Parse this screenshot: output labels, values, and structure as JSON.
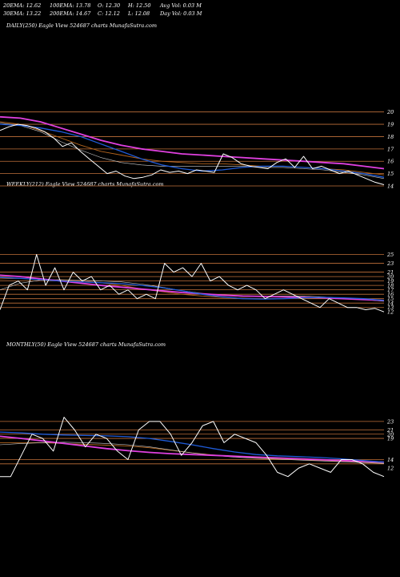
{
  "header": {
    "row1": [
      "20EMA: 12.62",
      "100EMA: 13.78",
      "O: 12.30",
      "H: 12.50",
      "Avg Vol: 0.03 M"
    ],
    "row2": [
      "30EMA: 13.22",
      "200EMA: 14.67",
      "C: 12.12",
      "L: 12.08",
      "Day Vol: 0.03 M"
    ]
  },
  "colors": {
    "background": "#000000",
    "price": "#ffffff",
    "ema_blue": "#1f5bd8",
    "ema_magenta": "#e040e0",
    "ema_brown": "#b5651d",
    "support_lines": "#c0703a"
  },
  "chart_data": [
    {
      "type": "line",
      "title": "DAILY(250) Eagle  View  524687 charts MunafaSutra.com",
      "ylim": [
        14,
        20.5
      ],
      "yticks": [
        20,
        19,
        18,
        17,
        16,
        15,
        14
      ],
      "hlines": [
        20,
        19,
        18,
        17,
        16,
        15,
        14
      ],
      "series": [
        {
          "role": "price",
          "values": [
            18.5,
            18.8,
            19.0,
            18.9,
            18.7,
            18.4,
            17.9,
            17.2,
            17.5,
            16.8,
            16.2,
            15.6,
            15.0,
            15.2,
            14.8,
            14.6,
            14.7,
            14.9,
            15.3,
            15.1,
            15.2,
            15.0,
            15.3,
            15.2,
            15.1,
            16.6,
            16.3,
            15.8,
            15.6,
            15.5,
            15.4,
            15.9,
            16.2,
            15.5,
            16.4,
            15.4,
            15.6,
            15.3,
            15.0,
            15.2,
            14.9,
            14.6,
            14.3,
            14.1
          ]
        },
        {
          "role": "ema-blue",
          "values": [
            19.0,
            18.9,
            18.7,
            18.4,
            18.0,
            17.4,
            16.8,
            16.2,
            15.7,
            15.4,
            15.2,
            15.3,
            15.5,
            15.6,
            15.6,
            15.5,
            15.4,
            15.2,
            15.0,
            14.7
          ]
        },
        {
          "role": "ema-magenta",
          "values": [
            19.6,
            19.5,
            19.2,
            18.7,
            18.2,
            17.7,
            17.3,
            17.0,
            16.8,
            16.6,
            16.5,
            16.4,
            16.3,
            16.2,
            16.1,
            16.0,
            15.9,
            15.8,
            15.6,
            15.4
          ]
        },
        {
          "role": "ema-brown",
          "values": [
            19.2,
            19.0,
            18.5,
            17.9,
            17.3,
            16.8,
            16.5,
            16.2,
            16.0,
            15.9,
            15.8,
            15.8,
            15.7,
            15.6,
            15.6,
            15.5,
            15.4,
            15.3,
            15.1,
            14.9
          ]
        },
        {
          "role": "ema-white",
          "values": [
            19.1,
            18.9,
            18.4,
            17.6,
            16.9,
            16.3,
            15.9,
            15.7,
            15.6,
            15.6,
            15.6,
            15.6,
            15.6,
            15.5,
            15.5,
            15.4,
            15.3,
            15.1,
            14.9,
            14.6
          ]
        }
      ]
    },
    {
      "type": "line",
      "title": "WEEKLY(212) Eagle  View  524687 charts MunafaSutra.com",
      "ylim": [
        11.5,
        26
      ],
      "yticks": [
        25,
        23,
        21,
        20,
        19,
        18,
        17,
        16,
        15,
        14,
        13,
        12
      ],
      "hlines": [
        25,
        23,
        21,
        20,
        19,
        18,
        17,
        16,
        15,
        14,
        13
      ],
      "series": [
        {
          "role": "price",
          "values": [
            12.5,
            18,
            19,
            17,
            25,
            18,
            22,
            17,
            21,
            19,
            20,
            17,
            18,
            16,
            17,
            15,
            16,
            15,
            23,
            21,
            22,
            20,
            23,
            19,
            20,
            18,
            17,
            18,
            17,
            15,
            16,
            17,
            16,
            15,
            14,
            13,
            15,
            14,
            13,
            13,
            12.5,
            12.8,
            12
          ]
        },
        {
          "role": "ema-blue",
          "values": [
            19.8,
            19.6,
            19.3,
            19.0,
            18.8,
            18.6,
            18.4,
            18.0,
            17.5,
            16.8,
            16.0,
            15.4,
            15.0,
            14.9,
            15.0,
            15.2,
            15.3,
            15.2,
            15.0,
            14.6
          ]
        },
        {
          "role": "ema-magenta",
          "values": [
            20.3,
            20.0,
            19.5,
            19.0,
            18.5,
            18.0,
            17.6,
            17.2,
            16.8,
            16.4,
            16.1,
            15.8,
            15.6,
            15.5,
            15.4,
            15.3,
            15.2,
            15.0,
            14.8,
            14.6
          ]
        },
        {
          "role": "ema-brown",
          "values": [
            19.5,
            19.6,
            19.4,
            19.2,
            19.0,
            18.6,
            18.0,
            17.2,
            16.6,
            16.0,
            15.6,
            15.3,
            15.1,
            15.0,
            15.0,
            15.1,
            15.1,
            15.0,
            14.8,
            14.5
          ]
        },
        {
          "role": "ema-white",
          "values": [
            17.0,
            18.5,
            19.2,
            19.3,
            19.2,
            19.0,
            18.8,
            18.3,
            17.6,
            16.8,
            16.2,
            15.7,
            15.5,
            15.5,
            15.6,
            15.6,
            15.4,
            15.1,
            14.8,
            14.4
          ]
        }
      ]
    },
    {
      "type": "line",
      "title": "MONTHLY(50) Eagle  View  524687 charts MunafaSutra.com",
      "ylim": [
        9,
        26
      ],
      "yticks": [
        23,
        21,
        20,
        19,
        14,
        12
      ],
      "hlines": [
        23,
        21,
        20,
        19,
        14,
        13
      ],
      "series": [
        {
          "role": "price",
          "values": [
            10,
            10,
            15,
            20,
            19,
            16,
            24,
            21,
            17,
            20,
            19,
            16,
            14,
            21,
            23,
            23,
            20,
            15,
            18,
            22,
            23,
            18,
            20,
            19,
            18,
            15,
            11,
            10,
            12,
            13,
            12,
            11,
            14,
            14,
            13,
            11,
            10
          ]
        },
        {
          "role": "ema-blue",
          "values": [
            20.5,
            20.3,
            20.0,
            19.8,
            19.7,
            19.6,
            19.4,
            19.0,
            18.3,
            17.5,
            16.6,
            15.8,
            15.2,
            14.9,
            14.7,
            14.5,
            14.2,
            13.8,
            13.4
          ]
        },
        {
          "role": "ema-magenta",
          "values": [
            19.5,
            19.0,
            18.4,
            17.8,
            17.2,
            16.6,
            16.1,
            15.7,
            15.4,
            15.2,
            15.0,
            14.8,
            14.6,
            14.4,
            14.2,
            14.0,
            13.8,
            13.6,
            13.4
          ]
        },
        {
          "role": "ema-brown",
          "values": [
            18.0,
            18.0,
            18.0,
            17.8,
            17.6,
            17.4,
            17.2,
            16.8,
            16.2,
            15.6,
            15.1,
            14.7,
            14.4,
            14.2,
            14.0,
            13.8,
            13.6,
            13.4,
            13.2
          ]
        },
        {
          "role": "ema-white",
          "values": [
            17.5,
            17.8,
            18.0,
            18.1,
            18.0,
            17.8,
            17.5,
            17.0,
            16.3,
            15.6,
            15.0,
            14.6,
            14.3,
            14.1,
            13.9,
            13.7,
            13.5,
            13.3,
            13.1
          ]
        }
      ]
    }
  ]
}
